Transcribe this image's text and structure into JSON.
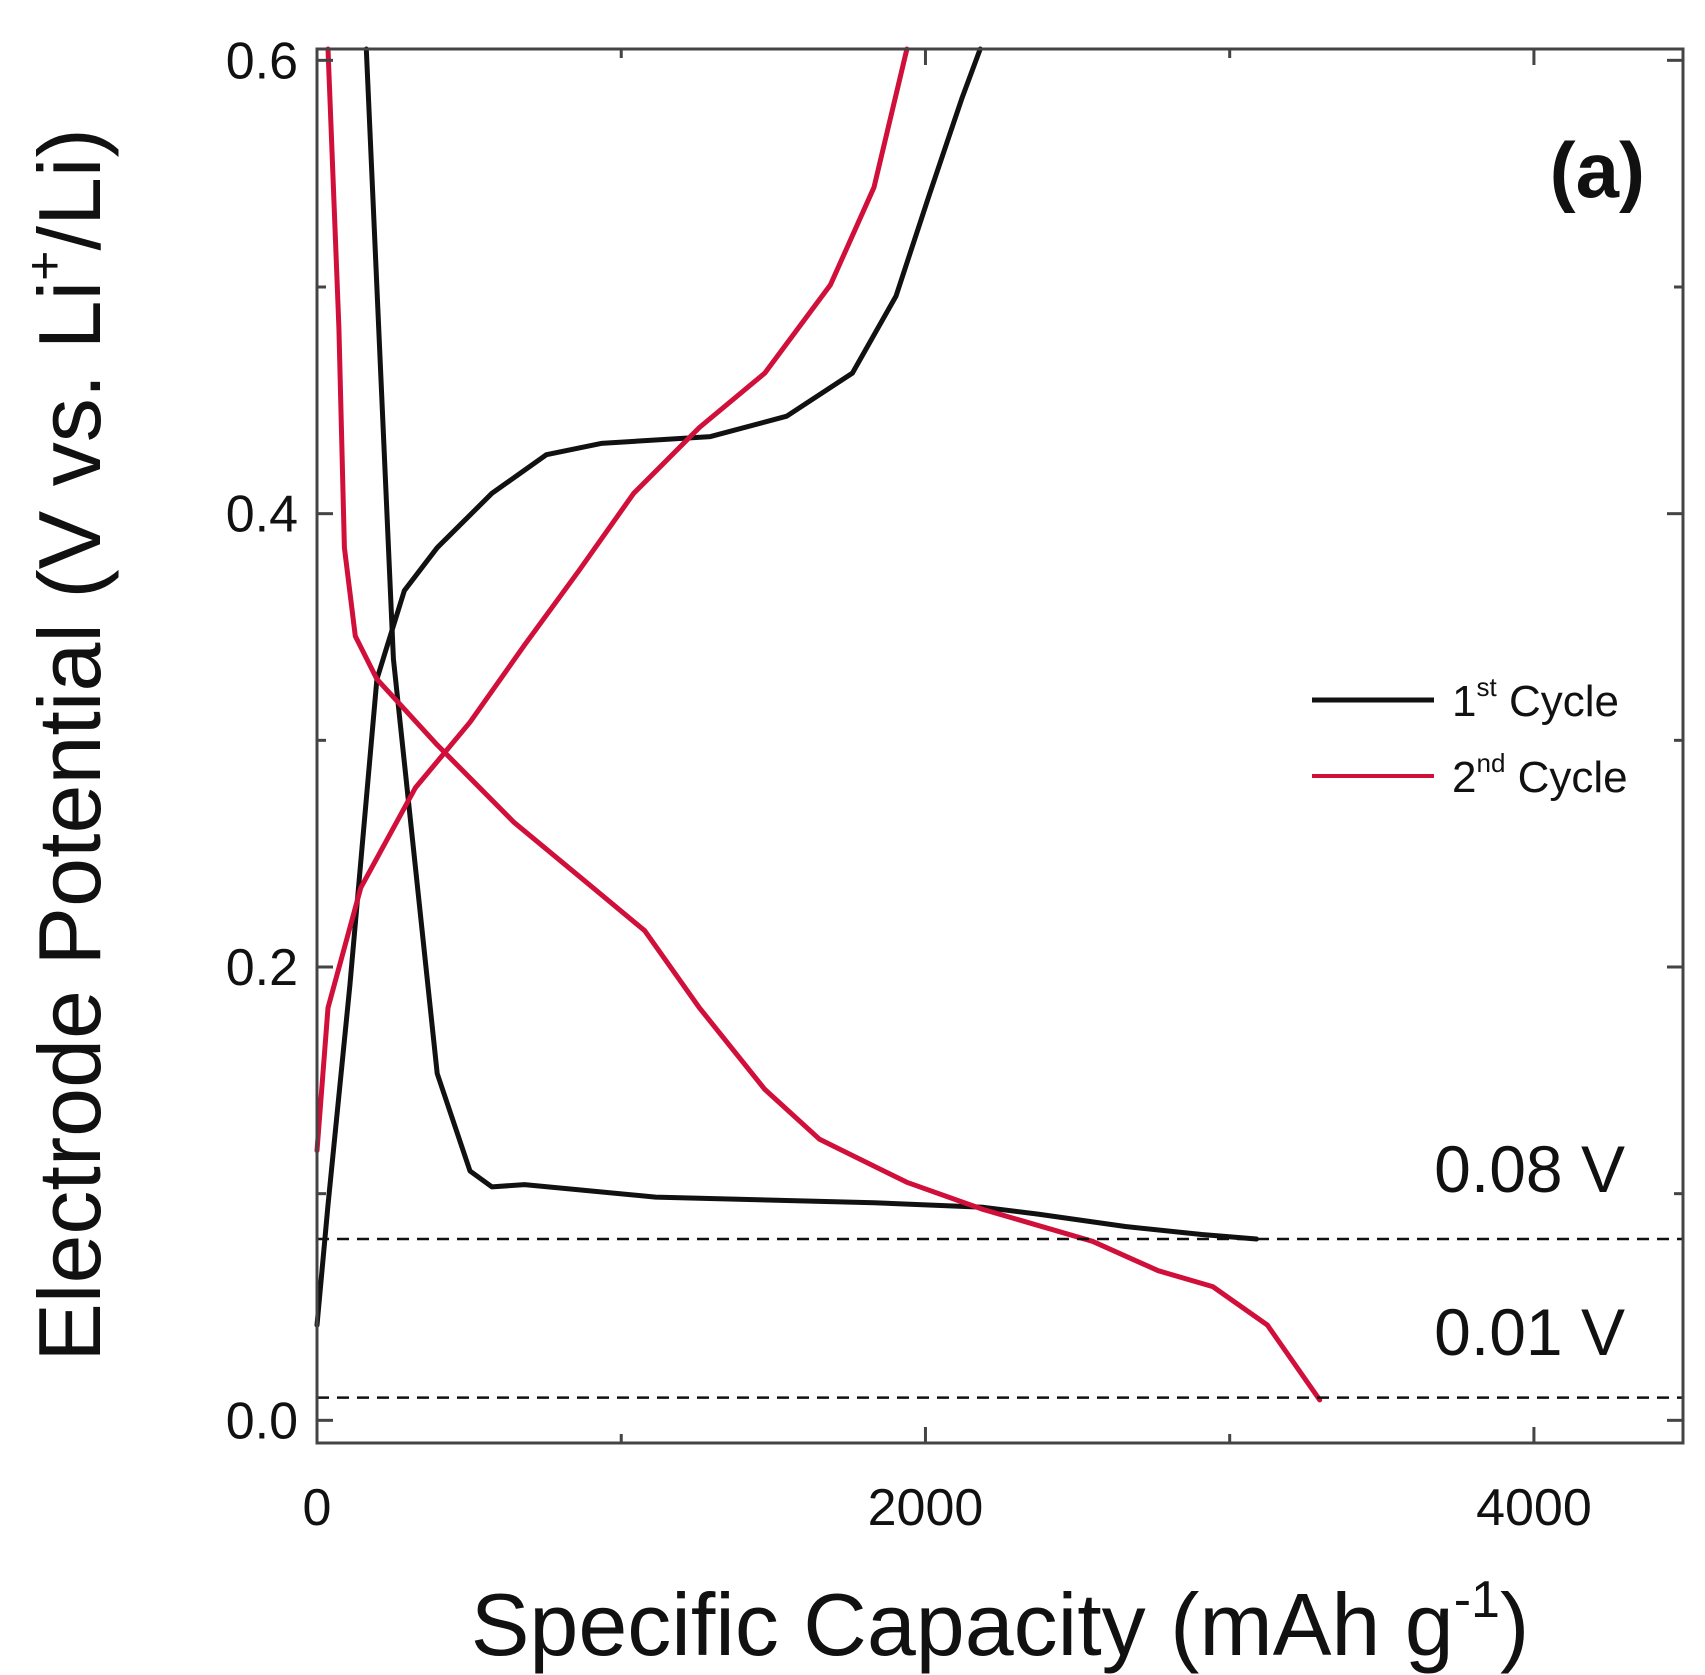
{
  "chart_data": {
    "type": "line",
    "title": "",
    "panel_label": "(a)",
    "xlabel": {
      "main": "Specific Capacity (mAh g",
      "sup": "-1",
      "end": ")"
    },
    "ylabel": {
      "main": "Electrode Potential (V vs. Li",
      "sup": "+",
      "end": "/Li)"
    },
    "xlim": [
      0,
      4490
    ],
    "ylim": [
      -0.01,
      0.605
    ],
    "xticks": [
      0,
      2000,
      4000
    ],
    "xtick_labels": [
      "0",
      "2000",
      "4000"
    ],
    "xminor": [
      1000,
      3000
    ],
    "yticks": [
      0.0,
      0.2,
      0.4,
      0.6
    ],
    "ytick_labels": [
      "0.0",
      "0.2",
      "0.4",
      "0.6"
    ],
    "yminor": [
      0.1,
      0.3,
      0.5
    ],
    "grid": false,
    "legend": {
      "placement": "right",
      "entries": [
        {
          "num": "1",
          "sup": "st",
          "text": " Cycle",
          "color": "#111111"
        },
        {
          "num": "2",
          "sup": "nd",
          "text": " Cycle",
          "color": "#d0103a"
        }
      ]
    },
    "reference_lines": [
      {
        "y": 0.08,
        "label": "0.08 V"
      },
      {
        "y": 0.01,
        "label": "0.01 V"
      }
    ],
    "series": [
      {
        "name": "1st Cycle discharge",
        "color": "#111111",
        "x": [
          162,
          251,
          395,
          503,
          575,
          682,
          1113,
          1831,
          2190,
          2370,
          2657,
          2908,
          3088
        ],
        "y": [
          0.605,
          0.336,
          0.153,
          0.11,
          0.103,
          0.104,
          0.0985,
          0.096,
          0.094,
          0.091,
          0.0855,
          0.082,
          0.08
        ]
      },
      {
        "name": "1st Cycle charge",
        "color": "#111111",
        "x": [
          0,
          36,
          108,
          197,
          287,
          395,
          575,
          754,
          934,
          1293,
          1544,
          1760,
          1903,
          2011,
          2119,
          2180
        ],
        "y": [
          0.042,
          0.095,
          0.192,
          0.327,
          0.366,
          0.385,
          0.409,
          0.426,
          0.431,
          0.434,
          0.443,
          0.462,
          0.496,
          0.54,
          0.583,
          0.605
        ]
      },
      {
        "name": "2nd Cycle discharge",
        "color": "#d0103a",
        "x": [
          36,
          72,
          90,
          126,
          197,
          395,
          646,
          862,
          1077,
          1257,
          1472,
          1652,
          1939,
          2190,
          2549,
          2765,
          2944,
          3124,
          3296
        ],
        "y": [
          0.605,
          0.482,
          0.385,
          0.346,
          0.327,
          0.298,
          0.264,
          0.24,
          0.216,
          0.182,
          0.146,
          0.124,
          0.105,
          0.093,
          0.079,
          0.066,
          0.059,
          0.042,
          0.009
        ]
      },
      {
        "name": "2nd Cycle charge",
        "color": "#d0103a",
        "x": [
          0,
          36,
          144,
          323,
          503,
          682,
          862,
          1041,
          1257,
          1472,
          1688,
          1831,
          1939
        ],
        "y": [
          0.119,
          0.182,
          0.235,
          0.279,
          0.308,
          0.342,
          0.375,
          0.409,
          0.438,
          0.462,
          0.501,
          0.544,
          0.605
        ]
      }
    ]
  }
}
